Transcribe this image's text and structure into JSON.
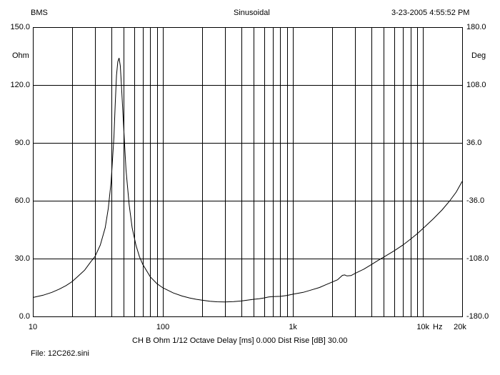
{
  "header": {
    "left": "BMS",
    "center": "Sinusoidal",
    "right": "3-23-2005 4:55:52 PM"
  },
  "footer": {
    "settings": "CH B   Ohm   1/12 Octave   Delay [ms] 0.000   Dist Rise [dB] 30.00",
    "file": "File: 12C262.sini"
  },
  "chart_data": {
    "type": "line",
    "title": "",
    "x_scale": "log",
    "xlim": [
      10,
      20000
    ],
    "x_tick_labels": [
      {
        "value": 10,
        "label": "10"
      },
      {
        "value": 100,
        "label": "100"
      },
      {
        "value": 1000,
        "label": "1k"
      },
      {
        "value": 10000,
        "label": "10k"
      },
      {
        "value": 20000,
        "label": "20k"
      }
    ],
    "x_unit": "Hz",
    "ylim": [
      0,
      150
    ],
    "y_unit": "Ohm",
    "y_ticks": [
      {
        "value": 0,
        "label": "0.0"
      },
      {
        "value": 30,
        "label": "30.0"
      },
      {
        "value": 60,
        "label": "60.0"
      },
      {
        "value": 90,
        "label": "90.0"
      },
      {
        "value": 120,
        "label": "120.0"
      },
      {
        "value": 150,
        "label": "150.0"
      }
    ],
    "y2lim": [
      -180,
      180
    ],
    "y2_unit": "Deg",
    "y2_ticks": [
      {
        "value": -180,
        "label": "-180.0"
      },
      {
        "value": -108,
        "label": "-108.0"
      },
      {
        "value": -36,
        "label": "-36.0"
      },
      {
        "value": 36,
        "label": "36.0"
      },
      {
        "value": 108,
        "label": "108.0"
      },
      {
        "value": 180,
        "label": "180.0"
      }
    ],
    "grid": true,
    "series": [
      {
        "color": "#000000",
        "points": [
          [
            10,
            9.8
          ],
          [
            12,
            11.0
          ],
          [
            14,
            12.5
          ],
          [
            16,
            14.2
          ],
          [
            18,
            16.0
          ],
          [
            20,
            18.0
          ],
          [
            22,
            20.5
          ],
          [
            25,
            24.0
          ],
          [
            28,
            28.5
          ],
          [
            30,
            31.0
          ],
          [
            33,
            37.0
          ],
          [
            36,
            46.0
          ],
          [
            38,
            56.0
          ],
          [
            40,
            70.0
          ],
          [
            42,
            93.0
          ],
          [
            43,
            110.0
          ],
          [
            44,
            125.0
          ],
          [
            45,
            132.0
          ],
          [
            46,
            134.0
          ],
          [
            47,
            130.0
          ],
          [
            48,
            120.0
          ],
          [
            50,
            97.0
          ],
          [
            52,
            76.0
          ],
          [
            55,
            58.0
          ],
          [
            58,
            46.0
          ],
          [
            62,
            37.0
          ],
          [
            66,
            31.0
          ],
          [
            70,
            27.0
          ],
          [
            80,
            20.5
          ],
          [
            90,
            17.0
          ],
          [
            100,
            14.8
          ],
          [
            120,
            12.2
          ],
          [
            140,
            10.6
          ],
          [
            160,
            9.6
          ],
          [
            180,
            8.9
          ],
          [
            200,
            8.4
          ],
          [
            230,
            7.9
          ],
          [
            260,
            7.6
          ],
          [
            300,
            7.5
          ],
          [
            350,
            7.7
          ],
          [
            400,
            8.0
          ],
          [
            450,
            8.5
          ],
          [
            500,
            8.9
          ],
          [
            550,
            9.2
          ],
          [
            600,
            9.6
          ],
          [
            650,
            10.1
          ],
          [
            700,
            10.3
          ],
          [
            800,
            10.4
          ],
          [
            900,
            10.9
          ],
          [
            1000,
            11.5
          ],
          [
            1200,
            12.5
          ],
          [
            1400,
            13.8
          ],
          [
            1600,
            15.0
          ],
          [
            1800,
            16.5
          ],
          [
            2000,
            17.8
          ],
          [
            2200,
            19.0
          ],
          [
            2400,
            21.3
          ],
          [
            2500,
            21.5
          ],
          [
            2600,
            21.0
          ],
          [
            2800,
            21.2
          ],
          [
            3000,
            22.3
          ],
          [
            3500,
            24.5
          ],
          [
            4000,
            26.8
          ],
          [
            4500,
            29.0
          ],
          [
            5000,
            30.8
          ],
          [
            6000,
            34.0
          ],
          [
            7000,
            37.0
          ],
          [
            8000,
            40.0
          ],
          [
            9000,
            42.8
          ],
          [
            10000,
            45.6
          ],
          [
            12000,
            50.6
          ],
          [
            14000,
            55.2
          ],
          [
            16000,
            59.8
          ],
          [
            18000,
            64.5
          ],
          [
            20000,
            70.0
          ]
        ]
      }
    ]
  }
}
